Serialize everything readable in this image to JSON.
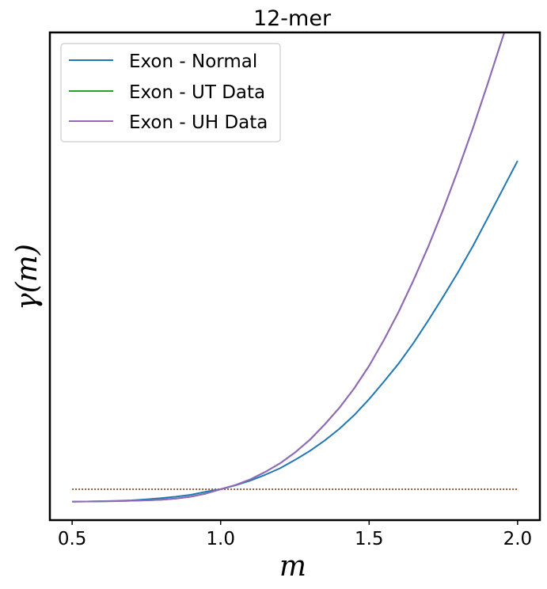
{
  "chart_data": {
    "type": "line",
    "title": "12-mer",
    "xlabel": "m",
    "ylabel": "γ(m)",
    "xlim": [
      0.425,
      2.075
    ],
    "ylim": [
      0.95,
      4.9
    ],
    "xticks": [
      0.5,
      1.0,
      1.5,
      2.0
    ],
    "xtick_labels": [
      "0.5",
      "1.0",
      "1.5",
      "2.0"
    ],
    "yticks": [],
    "grid": false,
    "legend_position": "top-left",
    "x": [
      0.5,
      0.55,
      0.6,
      0.65,
      0.7,
      0.75,
      0.8,
      0.85,
      0.9,
      0.95,
      1.0,
      1.05,
      1.1,
      1.15,
      1.2,
      1.25,
      1.3,
      1.35,
      1.4,
      1.45,
      1.5,
      1.55,
      1.6,
      1.65,
      1.7,
      1.75,
      1.8,
      1.85,
      1.9,
      1.95,
      2.0
    ],
    "series": [
      {
        "name": "Exon - Normal",
        "color": "#1f77b4",
        "values": [
          1.1,
          1.101,
          1.103,
          1.106,
          1.11,
          1.118,
          1.128,
          1.14,
          1.155,
          1.18,
          1.2,
          1.232,
          1.27,
          1.317,
          1.37,
          1.437,
          1.51,
          1.594,
          1.69,
          1.801,
          1.93,
          2.072,
          2.22,
          2.387,
          2.57,
          2.762,
          2.96,
          3.172,
          3.4,
          3.63,
          3.86
        ]
      },
      {
        "name": "Exon - UT Data",
        "color": "#2ca02c",
        "values": [
          1.1,
          1.101,
          1.102,
          1.104,
          1.107,
          1.11,
          1.115,
          1.125,
          1.14,
          1.165,
          1.2,
          1.234,
          1.28,
          1.34,
          1.41,
          1.497,
          1.6,
          1.724,
          1.86,
          2.018,
          2.2,
          2.41,
          2.64,
          2.896,
          3.17,
          3.469,
          3.79,
          4.129,
          4.49,
          4.862,
          5.22
        ]
      },
      {
        "name": "Exon - UH Data",
        "color": "#9467bd",
        "values": [
          1.1,
          1.101,
          1.102,
          1.104,
          1.107,
          1.11,
          1.115,
          1.125,
          1.14,
          1.165,
          1.2,
          1.234,
          1.28,
          1.34,
          1.41,
          1.497,
          1.6,
          1.724,
          1.86,
          2.018,
          2.2,
          2.41,
          2.64,
          2.896,
          3.17,
          3.469,
          3.79,
          4.129,
          4.49,
          4.862,
          5.22
        ]
      }
    ],
    "reference_line": {
      "y": 1.2,
      "style": "dotted",
      "color": "#a0522d"
    }
  }
}
